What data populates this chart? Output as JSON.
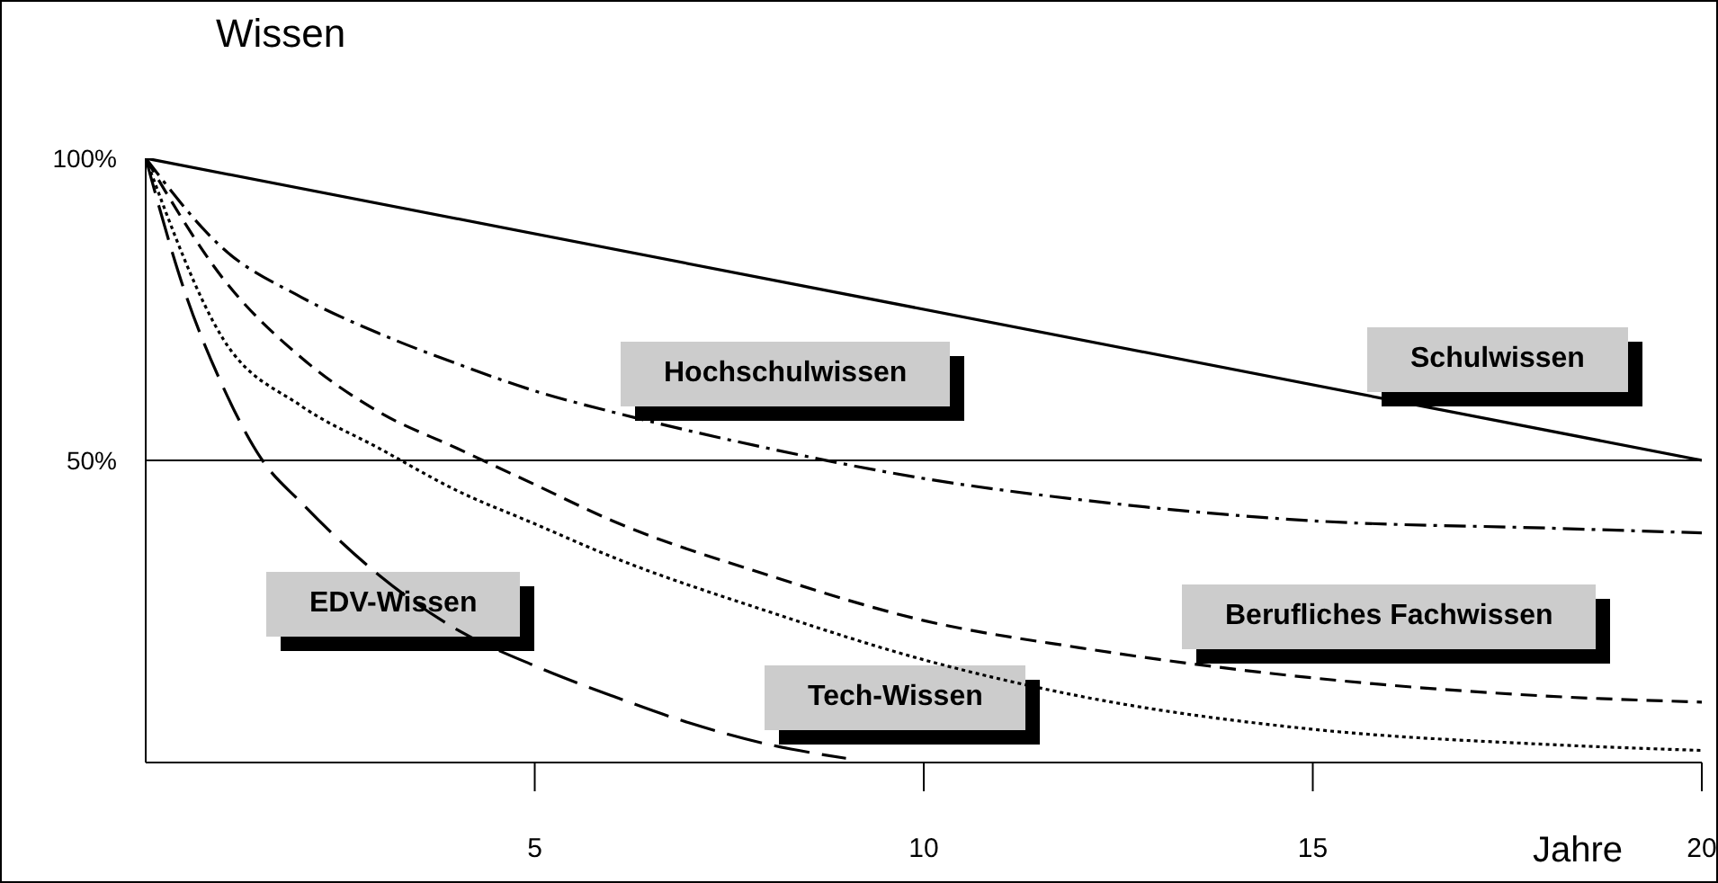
{
  "chart_data": {
    "type": "line",
    "ylabel": "Wissen",
    "xlabel": "Jahre",
    "xlim": [
      0,
      20
    ],
    "xticks": [
      5,
      10,
      15,
      20
    ],
    "ylim": [
      0,
      100
    ],
    "yticks": [
      {
        "value": 50,
        "label": "50%"
      },
      {
        "value": 100,
        "label": "100%"
      }
    ],
    "grid": false,
    "legend": false,
    "marker": "none",
    "ref_lines": [
      {
        "axis": "y",
        "value": 50
      }
    ],
    "x": [
      0,
      1,
      2,
      3,
      4,
      5,
      6,
      8,
      10,
      12,
      15,
      18,
      20
    ],
    "series": [
      {
        "name": "Schulwissen",
        "color": "#000000",
        "line_style": "solid",
        "x": [
          0,
          20
        ],
        "values": [
          100,
          50
        ]
      },
      {
        "name": "Hochschulwissen",
        "color": "#000000",
        "line_style": "dashdot",
        "values": [
          100,
          85,
          77,
          71,
          66,
          61.5,
          58,
          52,
          47,
          43.5,
          40,
          38.8,
          38
        ]
      },
      {
        "name": "Berufliches Fachwissen",
        "color": "#000000",
        "line_style": "dashed",
        "values": [
          100,
          80,
          67,
          58,
          52,
          46,
          40,
          31,
          23.5,
          19,
          14,
          11,
          10
        ]
      },
      {
        "name": "Tech-Wissen",
        "color": "#000000",
        "line_style": "dotted",
        "values": [
          100,
          70,
          59,
          52,
          45,
          39.5,
          34,
          25,
          17,
          11,
          5.5,
          3,
          2
        ]
      },
      {
        "name": "EDV-Wissen",
        "color": "#000000",
        "line_style": "longdash",
        "x": [
          0,
          0.5,
          1,
          1.5,
          2,
          3,
          4,
          5,
          6,
          7,
          8,
          9
        ],
        "values": [
          100,
          78,
          62,
          50,
          43,
          31,
          22,
          16,
          11,
          6.5,
          3,
          0.7
        ]
      }
    ]
  }
}
